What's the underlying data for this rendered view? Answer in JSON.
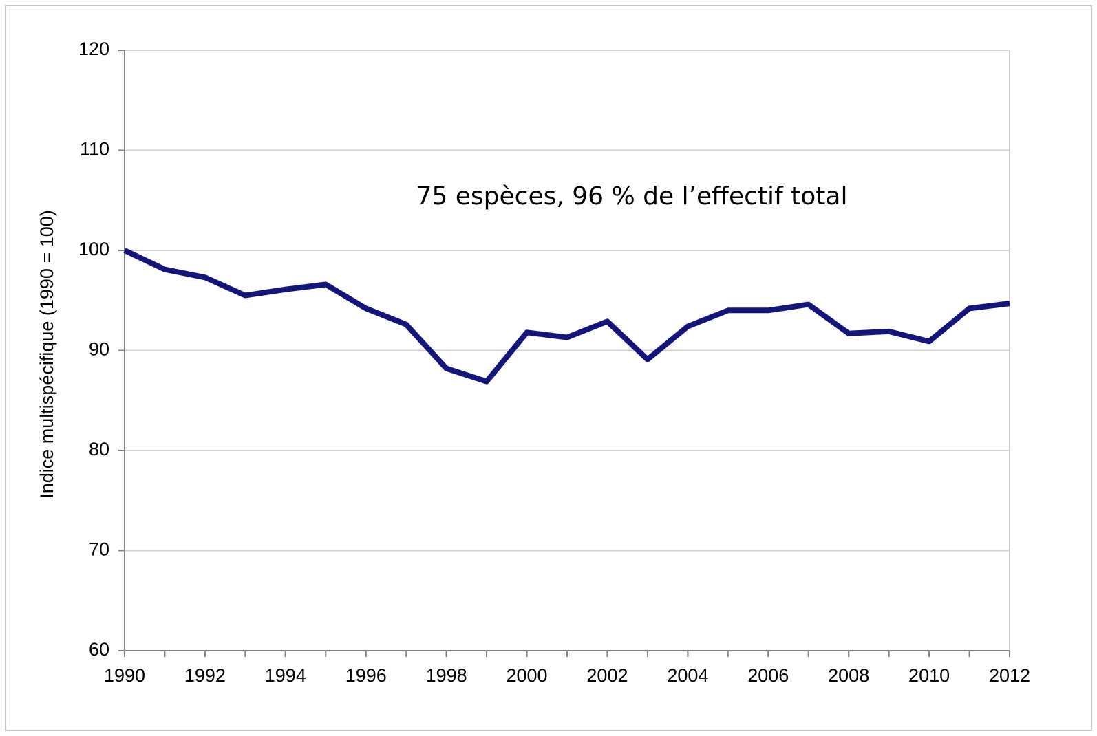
{
  "chart_data": {
    "type": "line",
    "ylabel": "Indice multispécifique  (1990 = 100)",
    "annotation": "75 espèces, 96 % de l’effectif total",
    "x": [
      1990,
      1991,
      1992,
      1993,
      1994,
      1995,
      1996,
      1997,
      1998,
      1999,
      2000,
      2001,
      2002,
      2003,
      2004,
      2005,
      2006,
      2007,
      2008,
      2009,
      2010,
      2011,
      2012
    ],
    "series": [
      {
        "color": "#14157a",
        "values": [
          100,
          98.1,
          97.3,
          95.5,
          96.1,
          96.6,
          94.2,
          92.6,
          88.2,
          86.9,
          91.8,
          91.3,
          92.9,
          89.1,
          92.4,
          94.0,
          94.0,
          94.6,
          91.7,
          91.9,
          90.9,
          94.2,
          94.7
        ]
      }
    ],
    "xlim": [
      1990,
      2012
    ],
    "xticks": [
      1990,
      1992,
      1994,
      1996,
      1998,
      2000,
      2002,
      2004,
      2006,
      2008,
      2010,
      2012
    ],
    "ylim": [
      60,
      120
    ],
    "yticks": [
      60,
      70,
      80,
      90,
      100,
      110,
      120
    ],
    "grid": true
  }
}
